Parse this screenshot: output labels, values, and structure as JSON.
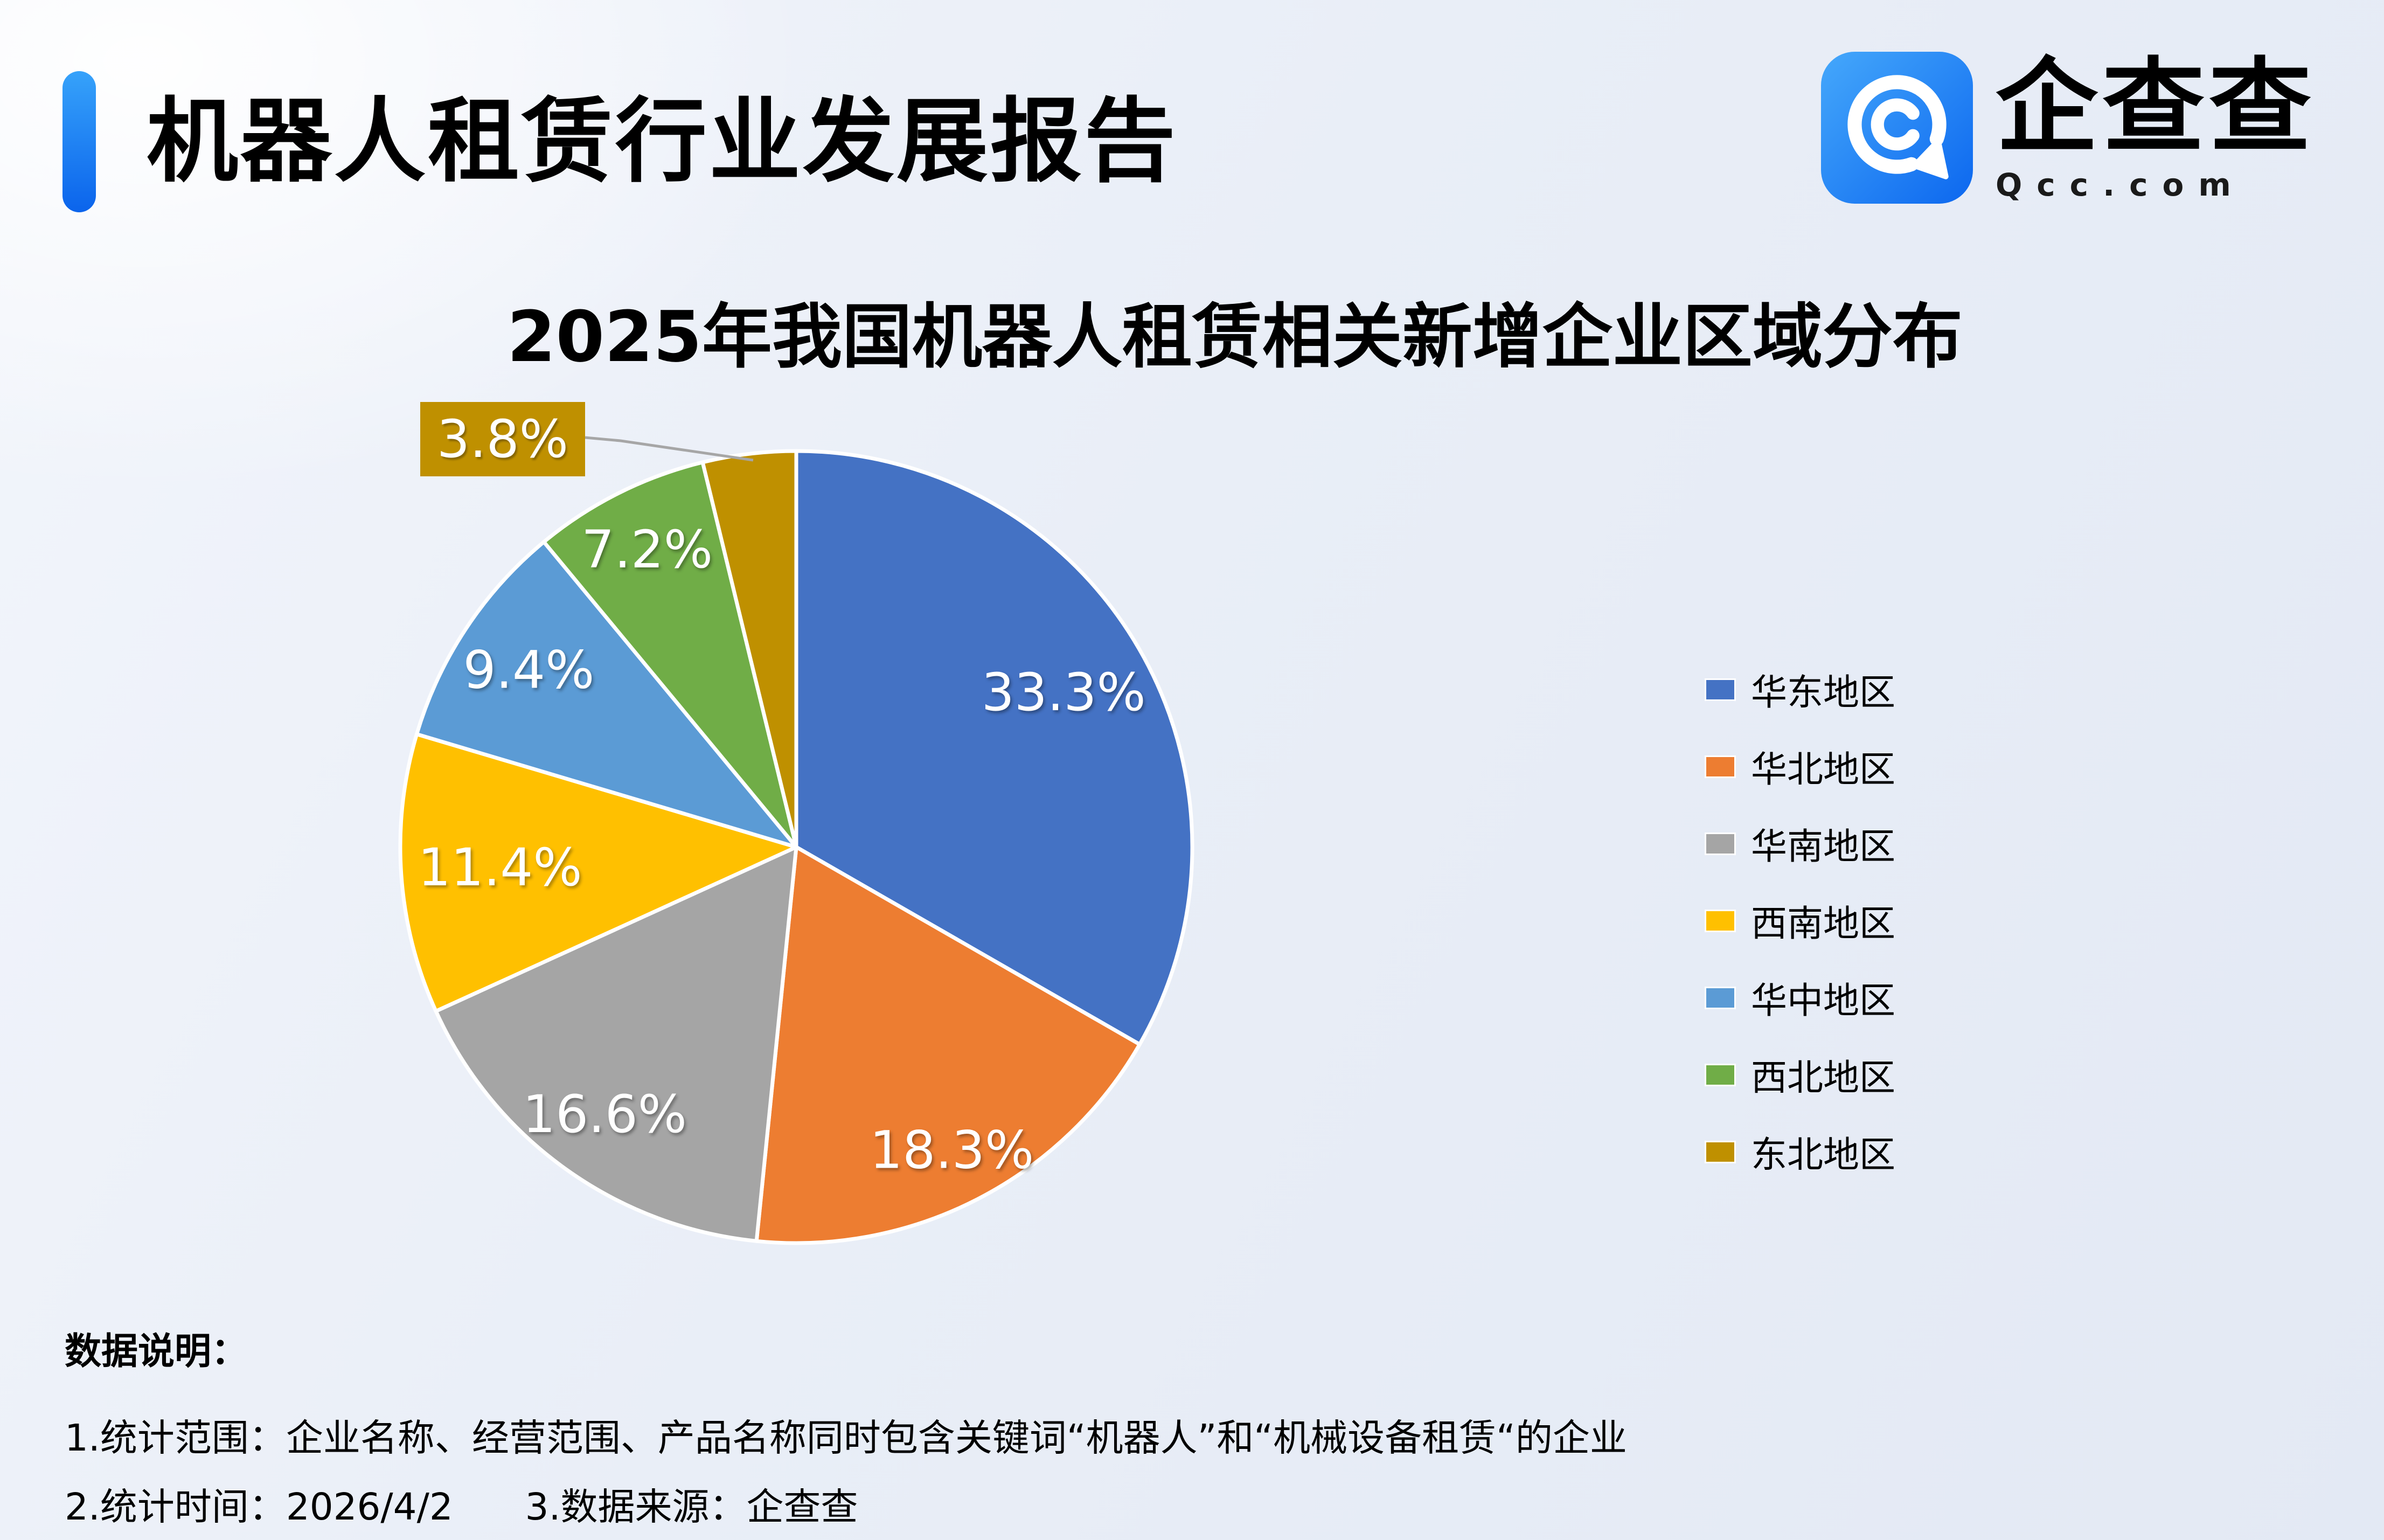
{
  "header": {
    "title": "机器人租赁行业发展报告",
    "logo_name": "企查查",
    "logo_domain": "Qcc.com"
  },
  "chart_data": {
    "type": "pie",
    "title": "2025年我国机器人租赁相关新增企业区域分布",
    "unit": "%",
    "direction": "clockwise",
    "start_angle": "12-oclock",
    "legend_position": "right",
    "series": [
      {
        "label": "华东地区",
        "value": 33.3,
        "color": "#4472C4"
      },
      {
        "label": "华北地区",
        "value": 18.3,
        "color": "#ED7D31"
      },
      {
        "label": "华南地区",
        "value": 16.6,
        "color": "#A5A5A5"
      },
      {
        "label": "西南地区",
        "value": 11.4,
        "color": "#FFC000"
      },
      {
        "label": "华中地区",
        "value": 9.4,
        "color": "#5B9BD5"
      },
      {
        "label": "西北地区",
        "value": 7.2,
        "color": "#70AD47"
      },
      {
        "label": "东北地区",
        "value": 3.8,
        "color": "#BF9000"
      }
    ],
    "callout": {
      "label": "东北地区",
      "text": "3.8%"
    }
  },
  "footnotes": {
    "heading": "数据说明：",
    "scope": "1.统计范围：企业名称、经营范围、产品名称同时包含关键词“机器人”和“机械设备租赁“的企业",
    "time": "2.统计时间：2026/4/2",
    "source": "3.数据来源：企查查"
  },
  "colors": {
    "accent_bar": "#1479F2",
    "logo_blue": "#1E88F5",
    "leader_line": "#A6A6A6",
    "pie_label_text": "#FFFFFF"
  }
}
